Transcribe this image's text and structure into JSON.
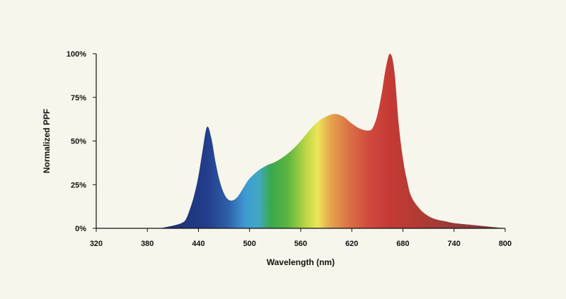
{
  "chart_data": {
    "type": "area",
    "title": "",
    "xlabel": "Wavelength (nm)",
    "ylabel": "Normalized PPF",
    "xlim": [
      320,
      800
    ],
    "ylim": [
      0,
      100
    ],
    "x_ticks": [
      320,
      380,
      440,
      500,
      560,
      620,
      680,
      740,
      800
    ],
    "y_ticks": [
      0,
      25,
      50,
      75,
      100
    ],
    "y_tick_suffix": "%",
    "grid": false,
    "legend": "none",
    "fill": "visible-spectrum gradient (violet-blue to red by wavelength)",
    "series": [
      {
        "name": "Normalized PPF",
        "points": [
          [
            395,
            0
          ],
          [
            400,
            0.5
          ],
          [
            410,
            1.5
          ],
          [
            420,
            3
          ],
          [
            425,
            5
          ],
          [
            430,
            11
          ],
          [
            435,
            19
          ],
          [
            440,
            30
          ],
          [
            445,
            45
          ],
          [
            450,
            58
          ],
          [
            455,
            52
          ],
          [
            460,
            38
          ],
          [
            465,
            27
          ],
          [
            470,
            20
          ],
          [
            475,
            16.5
          ],
          [
            480,
            16
          ],
          [
            485,
            17.5
          ],
          [
            490,
            21
          ],
          [
            495,
            25
          ],
          [
            500,
            28.5
          ],
          [
            510,
            33
          ],
          [
            520,
            36
          ],
          [
            530,
            38
          ],
          [
            540,
            41
          ],
          [
            550,
            45
          ],
          [
            560,
            50
          ],
          [
            570,
            56
          ],
          [
            580,
            61
          ],
          [
            590,
            64
          ],
          [
            600,
            65.5
          ],
          [
            610,
            64
          ],
          [
            620,
            60
          ],
          [
            630,
            57
          ],
          [
            640,
            56
          ],
          [
            645,
            58
          ],
          [
            650,
            65
          ],
          [
            655,
            77
          ],
          [
            660,
            92
          ],
          [
            665,
            100
          ],
          [
            670,
            90
          ],
          [
            675,
            60
          ],
          [
            680,
            40
          ],
          [
            685,
            27
          ],
          [
            690,
            18
          ],
          [
            700,
            11
          ],
          [
            710,
            7
          ],
          [
            720,
            5
          ],
          [
            730,
            4
          ],
          [
            740,
            3
          ],
          [
            760,
            2
          ],
          [
            780,
            1
          ],
          [
            800,
            0
          ]
        ]
      }
    ]
  },
  "colors": {
    "background": "#f7f6ec",
    "axis": "#111111",
    "spectrum_stops": [
      {
        "nm": 400,
        "color": "#1d2f6e"
      },
      {
        "nm": 450,
        "color": "#223d8c"
      },
      {
        "nm": 475,
        "color": "#2f5fa8"
      },
      {
        "nm": 495,
        "color": "#3d9bd2"
      },
      {
        "nm": 510,
        "color": "#42a8c4"
      },
      {
        "nm": 525,
        "color": "#3aa84e"
      },
      {
        "nm": 545,
        "color": "#5cb542"
      },
      {
        "nm": 565,
        "color": "#b8d444"
      },
      {
        "nm": 580,
        "color": "#ebe55a"
      },
      {
        "nm": 595,
        "color": "#e6a44e"
      },
      {
        "nm": 615,
        "color": "#dc7445"
      },
      {
        "nm": 640,
        "color": "#cf4a3d"
      },
      {
        "nm": 665,
        "color": "#c43a35"
      },
      {
        "nm": 700,
        "color": "#b23a33"
      },
      {
        "nm": 760,
        "color": "#8a3b3a"
      },
      {
        "nm": 800,
        "color": "#6e3a3a"
      }
    ]
  }
}
